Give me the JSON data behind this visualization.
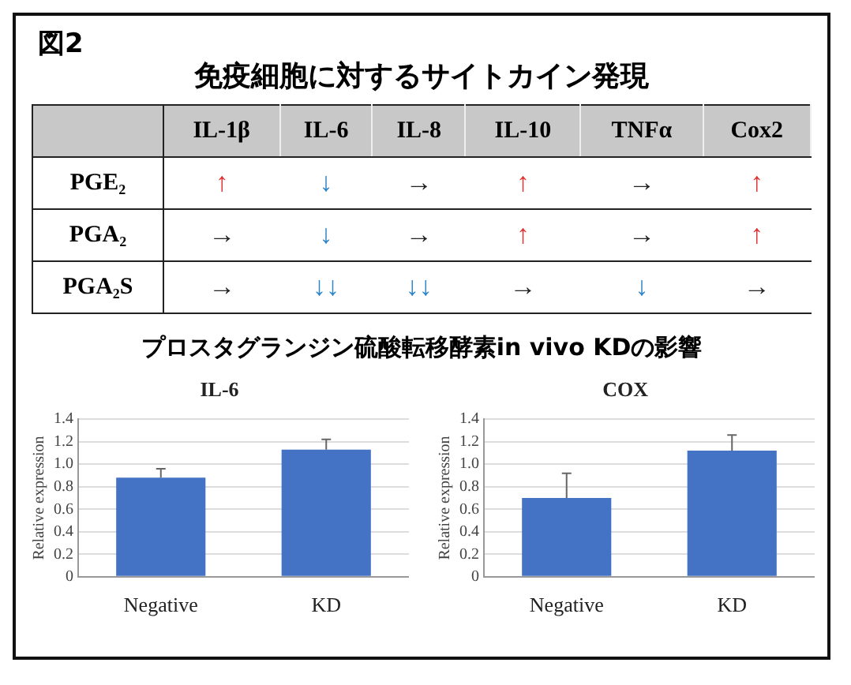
{
  "chart_data": [
    {
      "type": "other",
      "title": "免疫細胞に対するサイトカイン発現",
      "annotations": [
        "図2"
      ],
      "categories": [
        "IL-1β",
        "IL-6",
        "IL-8",
        "IL-10",
        "TNFα",
        "Cox2"
      ],
      "y_categories": [
        "PGE₂",
        "PGA₂",
        "PGA₂S"
      ],
      "cell_labels": [
        [
          "↑",
          "↓",
          "→",
          "↑",
          "→",
          "↑"
        ],
        [
          "→",
          "↓",
          "→",
          "↑",
          "→",
          "↑"
        ],
        [
          "→",
          "↓↓",
          "↓↓",
          "→",
          "↓",
          "→"
        ]
      ],
      "colors": [
        [
          "#e03030",
          "#2e86c8",
          "#222222",
          "#e03030",
          "#222222",
          "#e03030"
        ],
        [
          "#222222",
          "#2e86c8",
          "#222222",
          "#e03030",
          "#222222",
          "#e03030"
        ],
        [
          "#222222",
          "#2e86c8",
          "#2e86c8",
          "#222222",
          "#2e86c8",
          "#222222"
        ]
      ]
    },
    {
      "type": "bar",
      "subtitle": "プロスタグランジン硫酸転移酵素in vivo KDの影響",
      "title": "IL-6",
      "ylabel": "Relative expression",
      "categories": [
        "Negative",
        "KD"
      ],
      "values": [
        0.88,
        1.13
      ],
      "errors": [
        [
          0.88,
          0.96
        ],
        [
          1.13,
          1.22
        ]
      ],
      "color": "#4472c4",
      "ylim": [
        0,
        1.4
      ],
      "yticks": [
        0,
        0.2,
        0.4,
        0.6,
        0.8,
        {
          "value": 1,
          "label": "1.0"
        },
        1.2,
        1.4
      ],
      "grid": "y",
      "legend": false
    },
    {
      "type": "bar",
      "title": "COX",
      "ylabel": "Relative expression",
      "categories": [
        "Negative",
        "KD"
      ],
      "values": [
        0.7,
        1.12
      ],
      "errors": [
        [
          0.7,
          0.92
        ],
        [
          1.12,
          1.26
        ]
      ],
      "color": "#4472c4",
      "ylim": [
        0,
        1.4
      ],
      "yticks": [
        0,
        0.2,
        0.4,
        0.6,
        0.8,
        {
          "value": 1,
          "label": "1.0"
        },
        1.2,
        1.4
      ],
      "grid": "y",
      "legend": false
    }
  ]
}
